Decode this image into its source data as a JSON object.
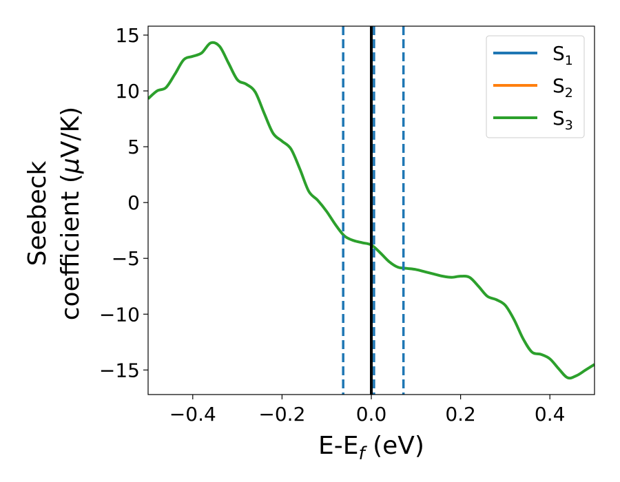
{
  "chart_data": {
    "type": "line",
    "title": "",
    "xlabel_main": "E-E",
    "xlabel_sub": "f",
    "xlabel_unit": " (eV)",
    "ylabel_line1": "Seebeck",
    "ylabel_line2_text": "coefficient  (",
    "ylabel_line2_mu": "μ",
    "ylabel_line2_unit": "V/K)",
    "xlim": [
      -0.5,
      0.5
    ],
    "ylim": [
      -17.2,
      15.8
    ],
    "xticks": [
      -0.4,
      -0.2,
      0.0,
      0.2,
      0.4
    ],
    "xtick_labels": [
      "−0.4",
      "−0.2",
      "0.0",
      "0.2",
      "0.4"
    ],
    "yticks": [
      15,
      10,
      5,
      0,
      -5,
      -10,
      -15
    ],
    "ytick_labels": [
      "15",
      "10",
      "5",
      "0",
      "−5",
      "−10",
      "−15"
    ],
    "legend_position": "top-right",
    "legend": [
      {
        "base": "S",
        "sub": "1",
        "color": "#1f77b4"
      },
      {
        "base": "S",
        "sub": "2",
        "color": "#ff7f0e"
      },
      {
        "base": "S",
        "sub": "3",
        "color": "#2ca02c"
      }
    ],
    "vlines_dashed": {
      "x": [
        -0.063,
        0.006,
        0.072
      ],
      "color": "#1f77b4"
    },
    "vline_solid": {
      "x": 0.0,
      "color": "#000000"
    },
    "series": [
      {
        "name": "S3",
        "color": "#2ca02c",
        "x": [
          -0.5,
          -0.48,
          -0.46,
          -0.44,
          -0.42,
          -0.4,
          -0.38,
          -0.36,
          -0.34,
          -0.32,
          -0.3,
          -0.28,
          -0.26,
          -0.24,
          -0.22,
          -0.2,
          -0.18,
          -0.16,
          -0.14,
          -0.12,
          -0.1,
          -0.08,
          -0.06,
          -0.04,
          -0.02,
          0.0,
          0.02,
          0.04,
          0.06,
          0.08,
          0.1,
          0.12,
          0.14,
          0.16,
          0.18,
          0.2,
          0.22,
          0.24,
          0.26,
          0.28,
          0.3,
          0.32,
          0.34,
          0.36,
          0.38,
          0.4,
          0.42,
          0.44,
          0.46,
          0.48,
          0.5
        ],
        "y": [
          9.3,
          10.0,
          10.3,
          11.5,
          12.8,
          13.1,
          13.4,
          14.3,
          14.0,
          12.5,
          11.0,
          10.6,
          9.9,
          8.0,
          6.2,
          5.5,
          4.8,
          3.0,
          1.0,
          0.2,
          -0.8,
          -2.0,
          -3.0,
          -3.4,
          -3.6,
          -3.8,
          -4.5,
          -5.3,
          -5.8,
          -5.9,
          -6.0,
          -6.2,
          -6.4,
          -6.6,
          -6.7,
          -6.6,
          -6.7,
          -7.5,
          -8.4,
          -8.7,
          -9.2,
          -10.5,
          -12.2,
          -13.4,
          -13.6,
          -14.0,
          -14.9,
          -15.7,
          -15.5,
          -15.0,
          -14.5
        ]
      }
    ]
  }
}
